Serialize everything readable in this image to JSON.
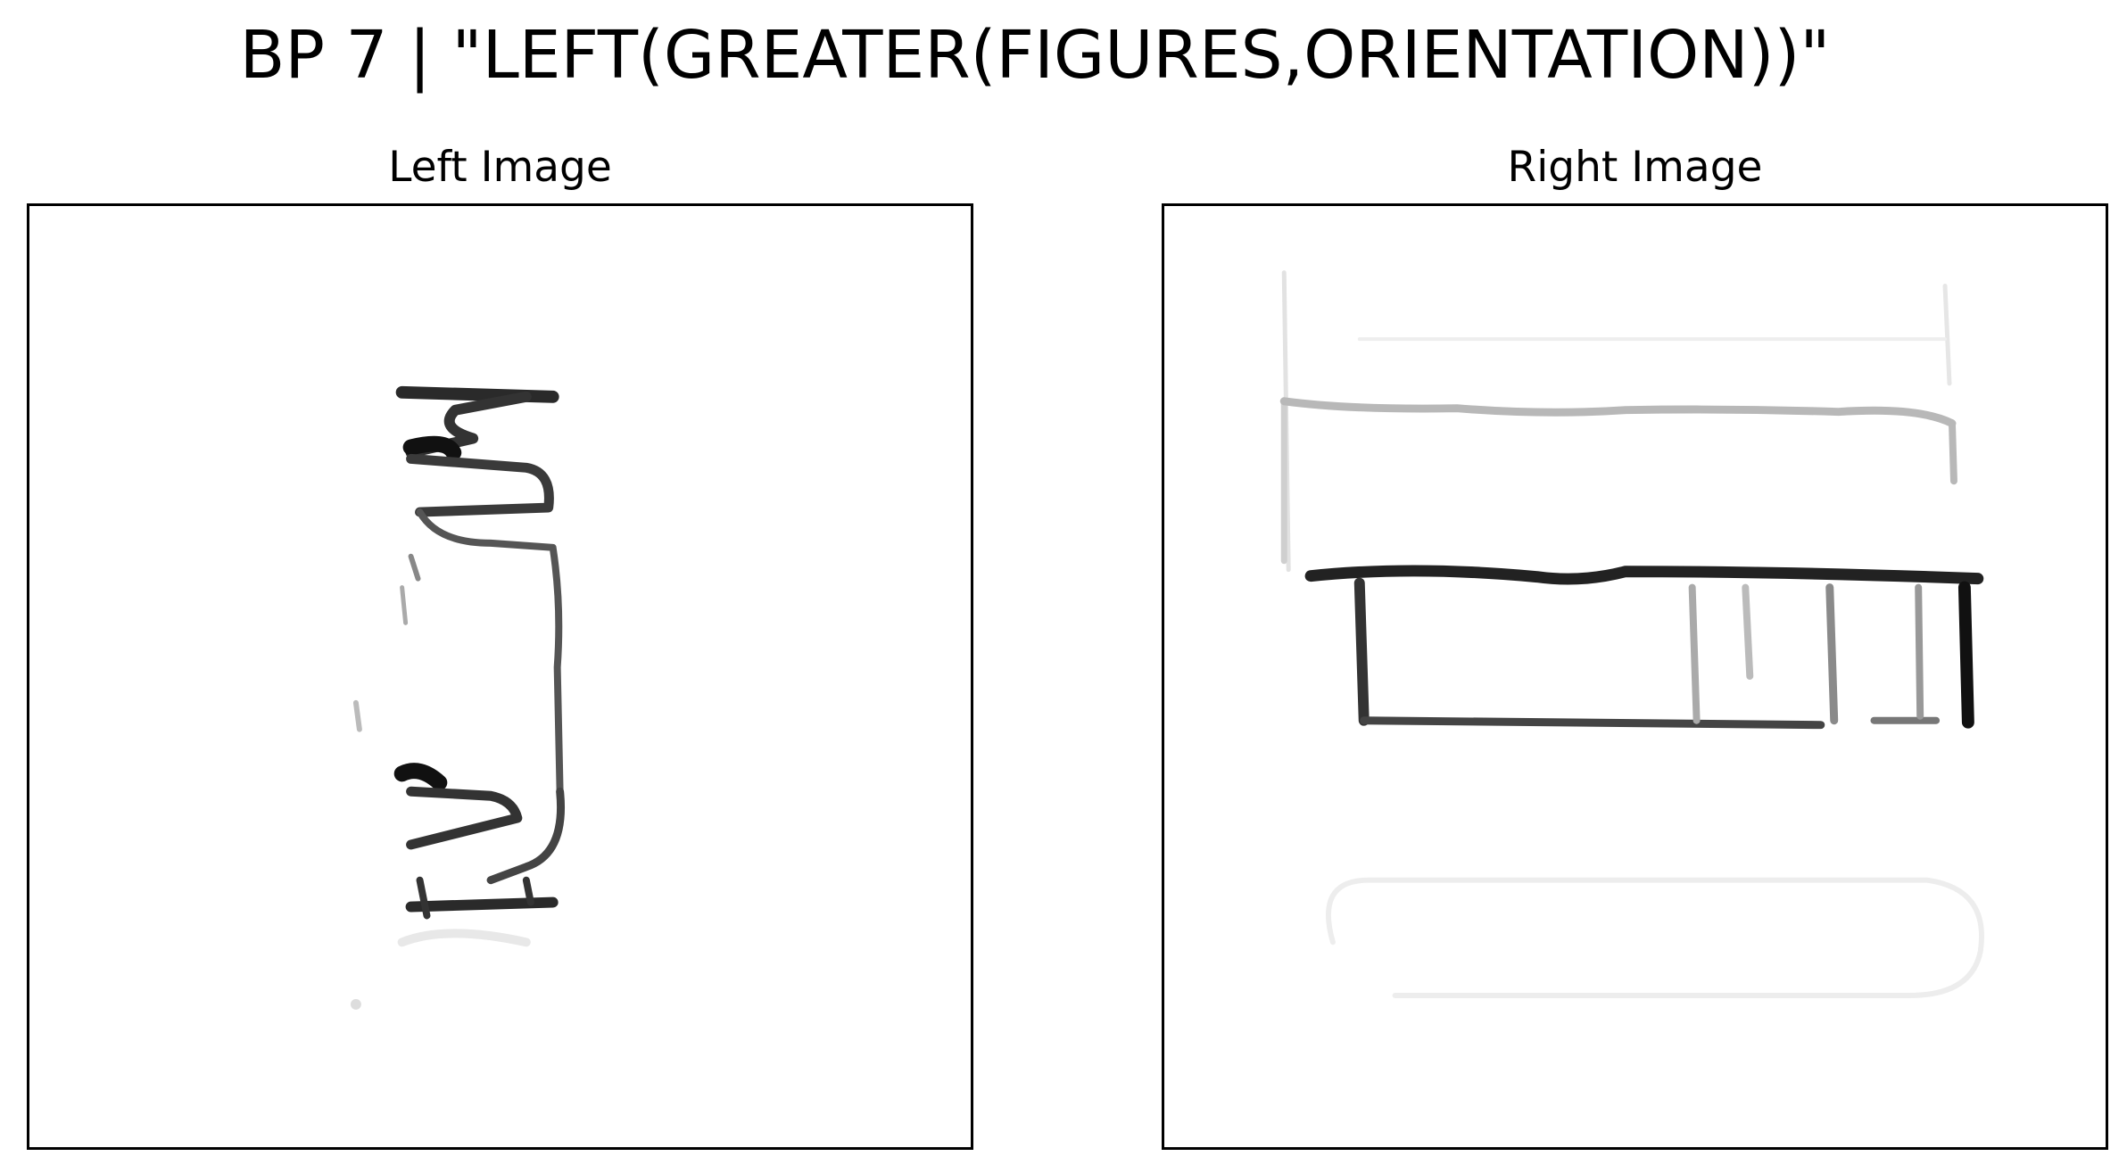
{
  "figure": {
    "title": "BP 7 | \"LEFT(GREATER(FIGURES,ORIENTATION))\""
  },
  "panels": {
    "left": {
      "title": "Left Image",
      "content": "hand-drawn sketch of two vertical bracket-like figures stacked"
    },
    "right": {
      "title": "Right Image",
      "content": "hand-drawn sketch of horizontal rectangle with vertical dividers"
    }
  },
  "colors": {
    "background": "#ffffff",
    "ink": "#000000",
    "faint_ink": "#c8c8c8"
  }
}
